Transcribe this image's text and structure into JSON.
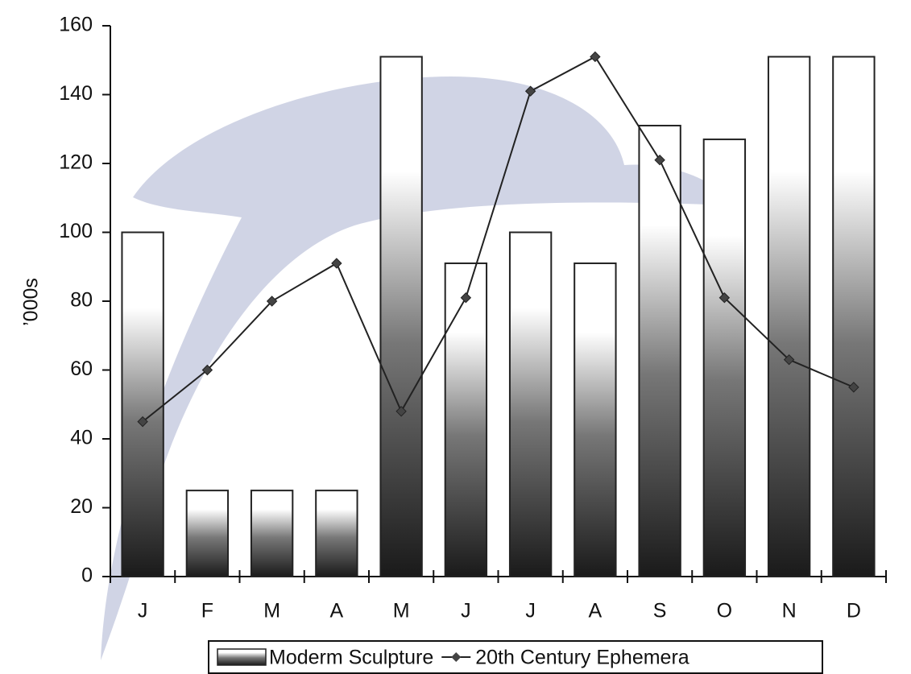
{
  "chart_data": {
    "type": "bar",
    "y_label": "’000s",
    "categories": [
      "J",
      "F",
      "M",
      "A",
      "M",
      "J",
      "J",
      "A",
      "S",
      "O",
      "N",
      "D"
    ],
    "series": [
      {
        "name": "Moderm Sculpture",
        "type": "bar",
        "color": "#222222",
        "values": [
          100,
          25,
          25,
          25,
          151,
          91,
          100,
          91,
          131,
          127,
          151,
          151
        ]
      },
      {
        "name": "20th Century Ephemera",
        "type": "line",
        "color": "#222222",
        "values": [
          45,
          60,
          80,
          91,
          48,
          81,
          141,
          151,
          121,
          81,
          63,
          55
        ]
      }
    ],
    "ylim": [
      0,
      160
    ],
    "yticks": [
      0,
      20,
      40,
      60,
      80,
      100,
      120,
      140,
      160
    ]
  }
}
